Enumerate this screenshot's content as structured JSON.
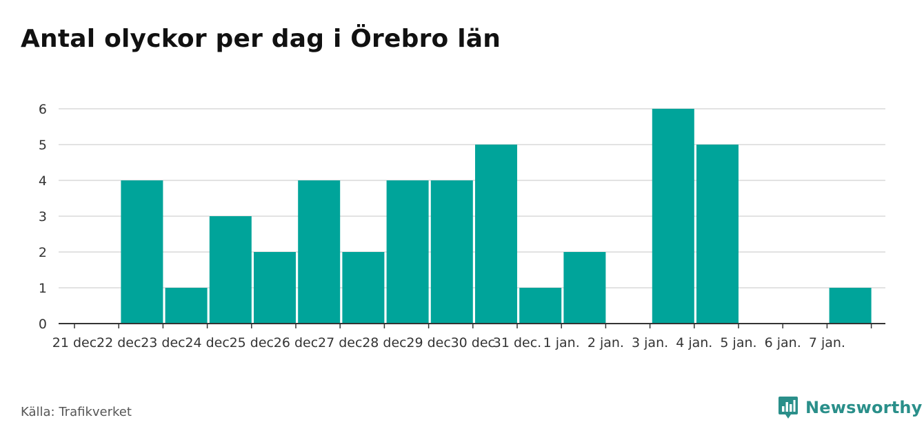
{
  "title": "Antal olyckor per dag i Örebro län",
  "source": "Källa: Trafikverket",
  "brand": "Newsworthy",
  "colors": {
    "bar": "#00a49a",
    "grid": "#d9d9d9",
    "axis": "#333333",
    "brand": "#2a8f8a"
  },
  "chart_data": {
    "type": "bar",
    "title": "Antal olyckor per dag i Örebro län",
    "xlabel": "",
    "ylabel": "",
    "ylim": [
      0,
      6
    ],
    "yticks": [
      0,
      1,
      2,
      3,
      4,
      5,
      6
    ],
    "grid": true,
    "categories": [
      "21 dec",
      "22 dec",
      "23 dec",
      "24 dec",
      "25 dec",
      "26 dec",
      "27 dec",
      "28 dec",
      "29 dec",
      "30 dec",
      "31 dec.",
      "1 jan.",
      "2 jan.",
      "3 jan.",
      "4 jan.",
      "5 jan.",
      "6 jan.",
      "7 jan."
    ],
    "values": [
      0,
      4,
      1,
      3,
      2,
      4,
      2,
      4,
      4,
      5,
      1,
      2,
      0,
      6,
      5,
      0,
      0,
      1
    ]
  }
}
